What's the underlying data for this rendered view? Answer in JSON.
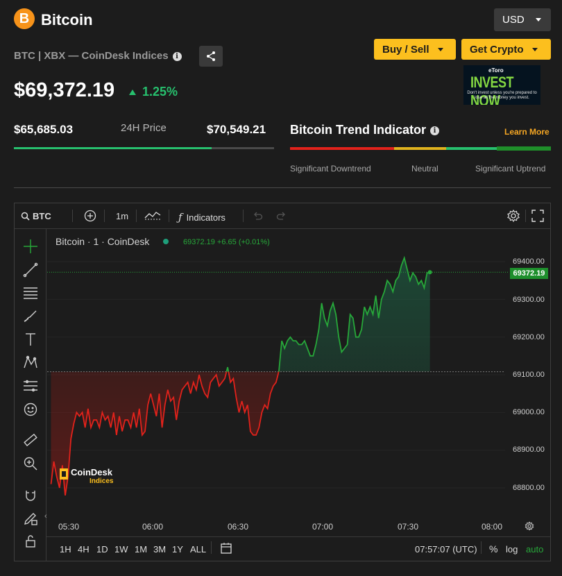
{
  "header": {
    "coin_symbol_glyph": "B",
    "coin_name": "Bitcoin",
    "currency": "USD",
    "subtitle": "BTC | XBX — CoinDesk Indices",
    "buy_sell_label": "Buy / Sell",
    "get_crypto_label": "Get Crypto",
    "price": "$69,372.19",
    "change": "1.25%"
  },
  "ad": {
    "brand": "eToro",
    "headline": "INVEST NOW",
    "disclaimer": "Don't invest unless you're prepared to lose all the money you invest."
  },
  "range": {
    "low": "$65,685.03",
    "label": "24H Price",
    "high": "$70,549.21",
    "position_fraction": 0.76
  },
  "trend": {
    "title": "Bitcoin Trend Indicator",
    "learn_more": "Learn More",
    "labels": [
      "Significant Downtrend",
      "Neutral",
      "Significant Uptrend"
    ],
    "colors": [
      "#e2221b",
      "#e0b31e",
      "#27c06e",
      "#1f8f2a"
    ]
  },
  "chart": {
    "toolbar": {
      "symbol": "BTC",
      "interval": "1m",
      "indicators": "Indicators"
    },
    "series_label": "Bitcoin · 1 · CoinDesk",
    "ohlc": "69372.19 +6.65 (+0.01%)",
    "y_ticks": [
      "69400.00",
      "69300.00",
      "69200.00",
      "69100.00",
      "69000.00",
      "68900.00",
      "68800.00"
    ],
    "last_price": "69372.19",
    "x_ticks": [
      "05:30",
      "06:00",
      "06:30",
      "07:00",
      "07:30",
      "08:00"
    ],
    "ranges": [
      "1H",
      "4H",
      "1D",
      "1W",
      "1M",
      "3M",
      "1Y",
      "ALL"
    ],
    "clock": "07:57:07 (UTC)",
    "percent": "%",
    "log": "log",
    "auto": "auto",
    "watermark": {
      "line1": "CoinDesk",
      "line2": "Indices"
    },
    "colors": {
      "up": "#27a83a",
      "down": "#e2221b"
    }
  },
  "chart_data": {
    "type": "line",
    "title": "Bitcoin · 1 · CoinDesk",
    "x_range": [
      "05:25",
      "07:58"
    ],
    "ylim": [
      68770,
      69430
    ],
    "baseline": 69108,
    "x_ticks": [
      "05:30",
      "06:00",
      "06:30",
      "07:00",
      "07:30",
      "08:00"
    ],
    "points": [
      [
        "05:25",
        68810
      ],
      [
        "05:26",
        68870
      ],
      [
        "05:27",
        68830
      ],
      [
        "05:28",
        68800
      ],
      [
        "05:29",
        68860
      ],
      [
        "05:30",
        68780
      ],
      [
        "05:31",
        68830
      ],
      [
        "05:32",
        68930
      ],
      [
        "05:33",
        68970
      ],
      [
        "05:34",
        69000
      ],
      [
        "05:35",
        68990
      ],
      [
        "05:36",
        69000
      ],
      [
        "05:37",
        68960
      ],
      [
        "05:38",
        69010
      ],
      [
        "05:39",
        68960
      ],
      [
        "05:40",
        68980
      ],
      [
        "05:41",
        68980
      ],
      [
        "05:42",
        68960
      ],
      [
        "05:43",
        69000
      ],
      [
        "05:44",
        68980
      ],
      [
        "05:45",
        68990
      ],
      [
        "05:46",
        68960
      ],
      [
        "05:47",
        69000
      ],
      [
        "05:48",
        68940
      ],
      [
        "05:49",
        68990
      ],
      [
        "05:50",
        68950
      ],
      [
        "05:51",
        68980
      ],
      [
        "05:52",
        68980
      ],
      [
        "05:53",
        68960
      ],
      [
        "05:54",
        69000
      ],
      [
        "05:55",
        68960
      ],
      [
        "05:56",
        69010
      ],
      [
        "05:57",
        68940
      ],
      [
        "05:58",
        68950
      ],
      [
        "05:59",
        69020
      ],
      [
        "06:00",
        69050
      ],
      [
        "06:01",
        69020
      ],
      [
        "06:02",
        68990
      ],
      [
        "06:03",
        69050
      ],
      [
        "06:04",
        68960
      ],
      [
        "06:05",
        69020
      ],
      [
        "06:06",
        69060
      ],
      [
        "06:07",
        69030
      ],
      [
        "06:08",
        69040
      ],
      [
        "06:09",
        68980
      ],
      [
        "06:10",
        69030
      ],
      [
        "06:11",
        69060
      ],
      [
        "06:12",
        69070
      ],
      [
        "06:13",
        69080
      ],
      [
        "06:14",
        69050
      ],
      [
        "06:15",
        69080
      ],
      [
        "06:16",
        69060
      ],
      [
        "06:17",
        69100
      ],
      [
        "06:18",
        69070
      ],
      [
        "06:19",
        69050
      ],
      [
        "06:20",
        69040
      ],
      [
        "06:21",
        69080
      ],
      [
        "06:22",
        69090
      ],
      [
        "06:23",
        69100
      ],
      [
        "06:24",
        69070
      ],
      [
        "06:25",
        69080
      ],
      [
        "06:26",
        69090
      ],
      [
        "06:27",
        69120
      ],
      [
        "06:28",
        69080
      ],
      [
        "06:29",
        69090
      ],
      [
        "06:30",
        69040
      ],
      [
        "06:31",
        69000
      ],
      [
        "06:32",
        69030
      ],
      [
        "06:33",
        69000
      ],
      [
        "06:34",
        69020
      ],
      [
        "06:35",
        68950
      ],
      [
        "06:36",
        68940
      ],
      [
        "06:37",
        68940
      ],
      [
        "06:38",
        68960
      ],
      [
        "06:39",
        69000
      ],
      [
        "06:40",
        69020
      ],
      [
        "06:41",
        69010
      ],
      [
        "06:42",
        69050
      ],
      [
        "06:43",
        69070
      ],
      [
        "06:44",
        69080
      ],
      [
        "06:45",
        69110
      ],
      [
        "06:46",
        69190
      ],
      [
        "06:47",
        69170
      ],
      [
        "06:48",
        69190
      ],
      [
        "06:49",
        69200
      ],
      [
        "06:50",
        69190
      ],
      [
        "06:51",
        69190
      ],
      [
        "06:52",
        69180
      ],
      [
        "06:53",
        69180
      ],
      [
        "06:54",
        69190
      ],
      [
        "06:55",
        69170
      ],
      [
        "06:56",
        69150
      ],
      [
        "06:57",
        69150
      ],
      [
        "06:58",
        69180
      ],
      [
        "06:59",
        69220
      ],
      [
        "07:00",
        69290
      ],
      [
        "07:01",
        69250
      ],
      [
        "07:02",
        69230
      ],
      [
        "07:03",
        69270
      ],
      [
        "07:04",
        69290
      ],
      [
        "07:05",
        69260
      ],
      [
        "07:06",
        69200
      ],
      [
        "07:07",
        69160
      ],
      [
        "07:08",
        69170
      ],
      [
        "07:09",
        69180
      ],
      [
        "07:10",
        69260
      ],
      [
        "07:11",
        69250
      ],
      [
        "07:12",
        69200
      ],
      [
        "07:13",
        69200
      ],
      [
        "07:14",
        69220
      ],
      [
        "07:15",
        69280
      ],
      [
        "07:16",
        69260
      ],
      [
        "07:17",
        69280
      ],
      [
        "07:18",
        69260
      ],
      [
        "07:19",
        69310
      ],
      [
        "07:20",
        69250
      ],
      [
        "07:21",
        69300
      ],
      [
        "07:22",
        69320
      ],
      [
        "07:23",
        69350
      ],
      [
        "07:24",
        69340
      ],
      [
        "07:25",
        69320
      ],
      [
        "07:26",
        69350
      ],
      [
        "07:27",
        69360
      ],
      [
        "07:28",
        69390
      ],
      [
        "07:29",
        69410
      ],
      [
        "07:30",
        69380
      ],
      [
        "07:31",
        69350
      ],
      [
        "07:32",
        69370
      ],
      [
        "07:33",
        69360
      ],
      [
        "07:34",
        69340
      ],
      [
        "07:35",
        69350
      ],
      [
        "07:36",
        69330
      ],
      [
        "07:37",
        69370
      ],
      [
        "07:38",
        69372
      ]
    ]
  }
}
